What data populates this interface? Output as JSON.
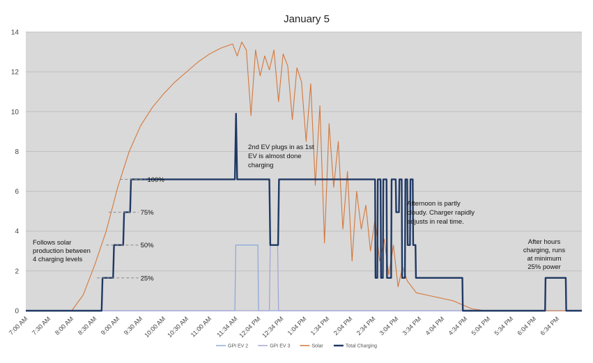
{
  "chart_data": {
    "type": "line",
    "title": "January 5",
    "xlabel": "",
    "ylabel": "",
    "ylim": [
      0,
      14
    ],
    "yticks": [
      0,
      2,
      4,
      6,
      8,
      10,
      12,
      14
    ],
    "xlim": [
      7,
      19.1
    ],
    "xtick_labels": [
      "7:00 AM",
      "7:30 AM",
      "8:00 AM",
      "8:30 AM",
      "9:00 AM",
      "9:30 AM",
      "10:00 AM",
      "10:30 AM",
      "11:00 AM",
      "11:34 AM",
      "12:04 PM",
      "12:34 PM",
      "1:04 PM",
      "1:34 PM",
      "2:04 PM",
      "2:34 PM",
      "3:04 PM",
      "3:34 PM",
      "4:04 PM",
      "4:34 PM",
      "5:04 PM",
      "5:34 PM",
      "6:04 PM",
      "6:34 PM"
    ],
    "xtick_hours": [
      7.0,
      7.5,
      8.0,
      8.5,
      9.0,
      9.5,
      10.0,
      10.5,
      11.0,
      11.567,
      12.067,
      12.567,
      13.067,
      13.567,
      14.067,
      14.567,
      15.067,
      15.567,
      16.067,
      16.567,
      17.067,
      17.567,
      18.067,
      18.567
    ],
    "grid": "horizontal",
    "legend_position": "bottom",
    "colors": {
      "plot_bg": "#d9d9d9",
      "gpi_ev2": "#8eaadb",
      "gpi_ev3": "#a5a5d6",
      "solar": "#d4773a",
      "total": "#1f3864",
      "guide": "#888888"
    },
    "series": [
      {
        "name": "GPI EV 2",
        "x": [
          7.0,
          11.55,
          11.57,
          12.05,
          12.065,
          19.1
        ],
        "y": [
          0,
          0,
          3.3,
          3.3,
          0,
          0
        ]
      },
      {
        "name": "GPI EV 3",
        "x": [
          7.0,
          12.3,
          12.32,
          12.48,
          12.5,
          19.1
        ],
        "y": [
          0,
          0,
          3.3,
          3.3,
          0,
          0
        ]
      },
      {
        "name": "Solar",
        "x": [
          7.0,
          8.0,
          8.25,
          8.5,
          8.75,
          9.0,
          9.25,
          9.5,
          9.75,
          10.0,
          10.25,
          10.5,
          10.75,
          11.0,
          11.25,
          11.5,
          11.6,
          11.7,
          11.8,
          11.9,
          12.0,
          12.1,
          12.2,
          12.3,
          12.4,
          12.5,
          12.6,
          12.7,
          12.8,
          12.9,
          13.0,
          13.1,
          13.2,
          13.3,
          13.4,
          13.5,
          13.6,
          13.7,
          13.8,
          13.9,
          14.0,
          14.1,
          14.2,
          14.3,
          14.4,
          14.5,
          14.6,
          14.7,
          14.8,
          14.9,
          15.0,
          15.1,
          15.2,
          15.3,
          15.5,
          15.7,
          15.9,
          16.1,
          16.3,
          16.5,
          16.7,
          17.0,
          19.1
        ],
        "y": [
          0,
          0,
          0.8,
          2.3,
          4.0,
          6.2,
          8.0,
          9.3,
          10.2,
          10.9,
          11.5,
          12.0,
          12.5,
          12.9,
          13.2,
          13.4,
          12.8,
          13.5,
          13.1,
          9.8,
          13.1,
          11.8,
          12.8,
          12.1,
          13.1,
          10.5,
          12.9,
          12.3,
          9.6,
          12.2,
          11.5,
          8.5,
          11.4,
          6.3,
          10.3,
          3.4,
          9.4,
          6.2,
          8.5,
          4.1,
          7.0,
          2.5,
          6.0,
          4.1,
          5.3,
          3.0,
          4.6,
          2.5,
          3.6,
          1.8,
          3.3,
          1.2,
          2.2,
          1.5,
          0.9,
          0.8,
          0.7,
          0.6,
          0.5,
          0.3,
          0.1,
          0,
          0
        ]
      },
      {
        "name": "Total Charging",
        "x": [
          7.0,
          8.65,
          8.67,
          8.9,
          8.92,
          9.12,
          9.14,
          9.27,
          9.29,
          11.55,
          11.55,
          11.575,
          11.6,
          12.3,
          12.32,
          12.49,
          12.51,
          14.6,
          14.61,
          14.65,
          14.66,
          14.72,
          14.73,
          14.77,
          14.78,
          14.85,
          14.86,
          14.95,
          14.96,
          15.05,
          15.06,
          15.12,
          15.13,
          15.18,
          15.19,
          15.25,
          15.26,
          15.3,
          15.31,
          15.36,
          15.37,
          15.42,
          15.43,
          15.48,
          15.49,
          16.5,
          16.51,
          18.3,
          18.31,
          18.75,
          18.76,
          19.1
        ],
        "y": [
          0,
          0,
          1.65,
          1.65,
          3.3,
          3.3,
          4.95,
          4.95,
          6.6,
          6.6,
          6.6,
          9.9,
          6.6,
          6.6,
          3.3,
          3.3,
          6.6,
          6.6,
          1.65,
          1.65,
          6.6,
          6.6,
          1.65,
          1.65,
          6.6,
          6.6,
          1.65,
          1.65,
          6.6,
          6.6,
          4.95,
          4.95,
          6.6,
          6.6,
          1.65,
          1.65,
          6.6,
          6.6,
          3.3,
          3.3,
          6.6,
          6.6,
          3.3,
          3.3,
          1.65,
          1.65,
          0,
          0,
          1.65,
          1.65,
          0,
          0
        ]
      }
    ],
    "level_lines": [
      {
        "label": "100%",
        "y": 6.6,
        "x_start": 9.05,
        "x_end": 9.6
      },
      {
        "label": "75%",
        "y": 4.95,
        "x_start": 8.8,
        "x_end": 9.45
      },
      {
        "label": "50%",
        "y": 3.3,
        "x_start": 8.75,
        "x_end": 9.45
      },
      {
        "label": "25%",
        "y": 1.65,
        "x_start": 8.55,
        "x_end": 9.45
      }
    ],
    "annotations": [
      {
        "id": "follows",
        "lines": [
          "Follows solar",
          "production between",
          "4 charging levels"
        ]
      },
      {
        "id": "second-ev",
        "lines": [
          "2nd EV plugs in as 1st",
          "EV is almost done",
          "charging"
        ]
      },
      {
        "id": "afternoon",
        "lines": [
          "Afternoon is partly",
          "cloudy. Charger rapidly",
          "adjusts in real time."
        ]
      },
      {
        "id": "after-hours",
        "lines": [
          "After hours",
          "charging, runs",
          "at minimum",
          "25% power"
        ]
      }
    ]
  }
}
